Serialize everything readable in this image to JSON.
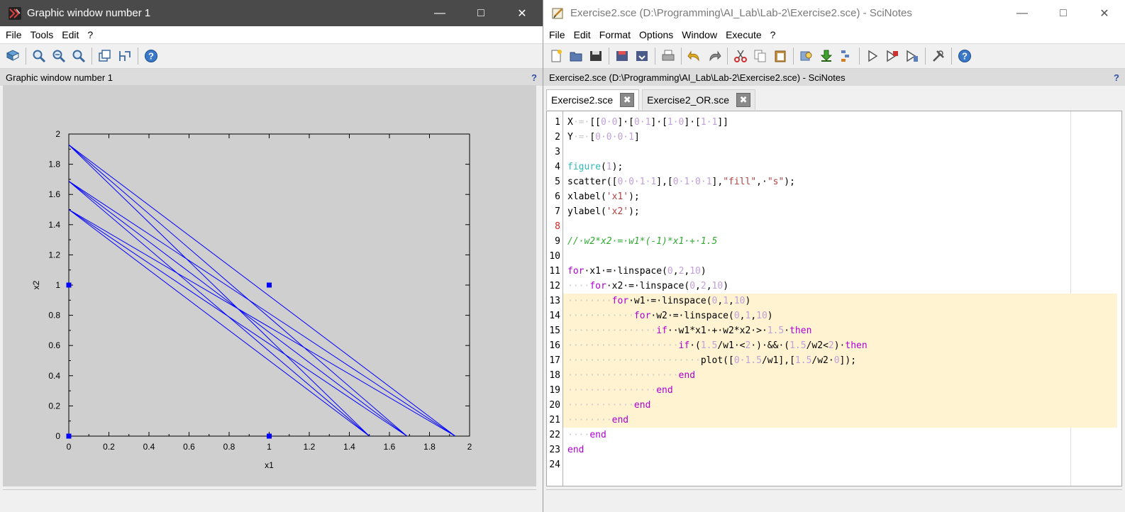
{
  "graphic_window": {
    "title": "Graphic window number 1",
    "menu": [
      "File",
      "Tools",
      "Edit",
      "?"
    ],
    "toolbar": [
      "datatip-icon",
      "zoom-icon",
      "zoom-in-icon",
      "zoom-out-icon",
      "rotate-icon",
      "axes-edit-icon",
      "help-icon"
    ],
    "info_label": "Graphic window number 1",
    "info_help": "?"
  },
  "chart_data": {
    "type": "scatter+line",
    "xlabel": "x1",
    "ylabel": "x2",
    "xlim": [
      0,
      2
    ],
    "ylim": [
      0,
      2
    ],
    "xticks": [
      "0",
      "0.2",
      "0.4",
      "0.6",
      "0.8",
      "1",
      "1.2",
      "1.4",
      "1.6",
      "1.8",
      "2"
    ],
    "yticks": [
      "0",
      "0.2",
      "0.4",
      "0.6",
      "0.8",
      "1",
      "1.2",
      "1.4",
      "1.6",
      "1.8",
      "2"
    ],
    "points": [
      {
        "x": 0,
        "y": 0
      },
      {
        "x": 0,
        "y": 1
      },
      {
        "x": 1,
        "y": 0
      },
      {
        "x": 1,
        "y": 1
      }
    ],
    "point_color": "#0000ff",
    "line_color": "#0000ff",
    "lines": [
      {
        "x": [
          0,
          1.5
        ],
        "y": [
          1.5,
          0
        ]
      },
      {
        "x": [
          0,
          1.6875
        ],
        "y": [
          1.5,
          0
        ]
      },
      {
        "x": [
          0,
          1.9286
        ],
        "y": [
          1.5,
          0
        ]
      },
      {
        "x": [
          0,
          1.5
        ],
        "y": [
          1.6875,
          0
        ]
      },
      {
        "x": [
          0,
          1.6875
        ],
        "y": [
          1.6875,
          0
        ]
      },
      {
        "x": [
          0,
          1.9286
        ],
        "y": [
          1.6875,
          0
        ]
      },
      {
        "x": [
          0,
          1.5
        ],
        "y": [
          1.9286,
          0
        ]
      },
      {
        "x": [
          0,
          1.6875
        ],
        "y": [
          1.9286,
          0
        ]
      },
      {
        "x": [
          0,
          1.9286
        ],
        "y": [
          1.9286,
          0
        ]
      }
    ]
  },
  "scinotes": {
    "title": "Exercise2.sce (D:\\Programming\\AI_Lab\\Lab-2\\Exercise2.sce) - SciNotes",
    "menu": [
      "File",
      "Edit",
      "Format",
      "Options",
      "Window",
      "Execute",
      "?"
    ],
    "toolbar": [
      "new-file-icon",
      "open-icon",
      "save-icon",
      "save-as-icon",
      "save-all-icon",
      "print-icon",
      "undo-icon",
      "redo-icon",
      "cut-icon",
      "copy-icon",
      "paste-icon",
      "find-icon",
      "load-into-scilab-icon",
      "exec-icon",
      "run-icon",
      "run-and-save-icon",
      "run-until-icon",
      "tools-icon",
      "help-icon"
    ],
    "info_label": "Exercise2.sce (D:\\Programming\\AI_Lab\\Lab-2\\Exercise2.sce) - SciNotes",
    "info_help": "?",
    "tabs": [
      {
        "label": "Exercise2.sce",
        "active": true
      },
      {
        "label": "Exercise2_OR.sce",
        "active": false
      }
    ],
    "modified_line": 8,
    "highlight_lines": [
      13,
      21
    ],
    "lines": [
      [
        [
          "X",
          ""
        ],
        [
          "·=·",
          "ws"
        ],
        [
          "[[",
          ""
        ],
        [
          "0·0",
          "num"
        ],
        [
          "]·[",
          ""
        ],
        [
          "0·1",
          "num"
        ],
        [
          "]·[",
          ""
        ],
        [
          "1·0",
          "num"
        ],
        [
          "]·[",
          ""
        ],
        [
          "1·1",
          "num"
        ],
        [
          "]]",
          ""
        ]
      ],
      [
        [
          "Y",
          ""
        ],
        [
          "·=·",
          "ws"
        ],
        [
          "[",
          ""
        ],
        [
          "0·0·0·1",
          "num"
        ],
        [
          "]",
          ""
        ]
      ],
      [],
      [
        [
          "figure",
          "fn"
        ],
        [
          "(",
          ""
        ],
        [
          "1",
          "num"
        ],
        [
          ");",
          ""
        ]
      ],
      [
        [
          "scatter",
          ""
        ],
        [
          "([",
          ""
        ],
        [
          "0·0·1·1",
          "num"
        ],
        [
          "],[",
          ""
        ],
        [
          "0·1·0·1",
          "num"
        ],
        [
          "],",
          ""
        ],
        [
          "\"fill\"",
          "str"
        ],
        [
          ",·",
          ""
        ],
        [
          "\"s\"",
          "str"
        ],
        [
          ");",
          ""
        ]
      ],
      [
        [
          "xlabel",
          ""
        ],
        [
          "(",
          ""
        ],
        [
          "'x1'",
          "str"
        ],
        [
          ");",
          ""
        ]
      ],
      [
        [
          "ylabel",
          ""
        ],
        [
          "(",
          ""
        ],
        [
          "'x2'",
          "str"
        ],
        [
          ");",
          ""
        ]
      ],
      [],
      [
        [
          "//·w2*x2·=·w1*(-1)*x1·+·1.5",
          "com"
        ]
      ],
      [],
      [
        [
          "for",
          "kw"
        ],
        [
          "·x1·=·",
          ""
        ],
        [
          "linspace",
          ""
        ],
        [
          "(",
          ""
        ],
        [
          "0",
          "num"
        ],
        [
          ",",
          ""
        ],
        [
          "2",
          "num"
        ],
        [
          ",",
          ""
        ],
        [
          "10",
          "num"
        ],
        [
          ")",
          ""
        ]
      ],
      [
        [
          "····",
          "ws"
        ],
        [
          "for",
          "kw"
        ],
        [
          "·x2·=·",
          ""
        ],
        [
          "linspace",
          ""
        ],
        [
          "(",
          ""
        ],
        [
          "0",
          "num"
        ],
        [
          ",",
          ""
        ],
        [
          "2",
          "num"
        ],
        [
          ",",
          ""
        ],
        [
          "10",
          "num"
        ],
        [
          ")",
          ""
        ]
      ],
      [
        [
          "········",
          "ws"
        ],
        [
          "for",
          "kw"
        ],
        [
          "·w1·=·",
          ""
        ],
        [
          "linspace",
          ""
        ],
        [
          "(",
          ""
        ],
        [
          "0",
          "num"
        ],
        [
          ",",
          ""
        ],
        [
          "1",
          "num"
        ],
        [
          ",",
          ""
        ],
        [
          "10",
          "num"
        ],
        [
          ")",
          ""
        ]
      ],
      [
        [
          "············",
          "ws"
        ],
        [
          "for",
          "kw"
        ],
        [
          "·w2·=·",
          ""
        ],
        [
          "linspace",
          ""
        ],
        [
          "(",
          ""
        ],
        [
          "0",
          "num"
        ],
        [
          ",",
          ""
        ],
        [
          "1",
          "num"
        ],
        [
          ",",
          ""
        ],
        [
          "10",
          "num"
        ],
        [
          ")",
          ""
        ]
      ],
      [
        [
          "················",
          "ws"
        ],
        [
          "if",
          "kw"
        ],
        [
          "··w1*x1·+·w2*x2·>·",
          ""
        ],
        [
          "1.5",
          "num"
        ],
        [
          "·",
          ""
        ],
        [
          "then",
          "kw"
        ]
      ],
      [
        [
          "····················",
          "ws"
        ],
        [
          "if",
          "kw"
        ],
        [
          "·(",
          ""
        ],
        [
          "1.5",
          "num"
        ],
        [
          "/w1·<",
          ""
        ],
        [
          "2",
          "num"
        ],
        [
          "·)·&&·(",
          ""
        ],
        [
          "1.5",
          "num"
        ],
        [
          "/w2<",
          ""
        ],
        [
          "2",
          "num"
        ],
        [
          ")·",
          ""
        ],
        [
          "then",
          "kw"
        ]
      ],
      [
        [
          "························",
          "ws"
        ],
        [
          "plot",
          ""
        ],
        [
          "([",
          ""
        ],
        [
          "0·1.5",
          "num"
        ],
        [
          "/w1],[",
          ""
        ],
        [
          "1.5",
          "num"
        ],
        [
          "/w2·",
          ""
        ],
        [
          "0",
          "num"
        ],
        [
          "]);",
          ""
        ]
      ],
      [
        [
          "····················",
          "ws"
        ],
        [
          "end",
          "kw"
        ]
      ],
      [
        [
          "················",
          "ws"
        ],
        [
          "end",
          "kw"
        ]
      ],
      [
        [
          "············",
          "ws"
        ],
        [
          "end",
          "kw"
        ]
      ],
      [
        [
          "········",
          "ws"
        ],
        [
          "end",
          "kw"
        ]
      ],
      [
        [
          "····",
          "ws"
        ],
        [
          "end",
          "kw"
        ]
      ],
      [
        [
          "end",
          "kw"
        ]
      ],
      []
    ]
  }
}
